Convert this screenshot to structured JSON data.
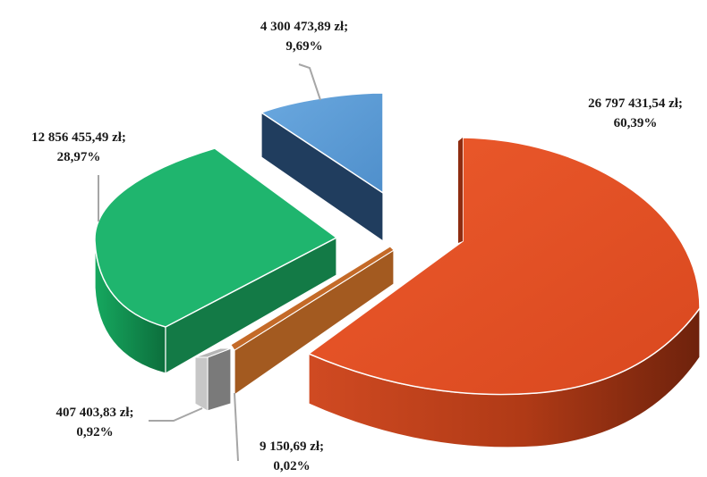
{
  "chart_data": {
    "type": "pie",
    "title": "",
    "style": "3d-exploded",
    "currency": "zł",
    "slices": [
      {
        "value_label": "26 797 431,54 zł;",
        "percent_label": "60,39%",
        "value": 26797431.54,
        "percent": 60.39,
        "color": "#e24e24"
      },
      {
        "value_label": "9 150,69 zł;",
        "percent_label": "0,02%",
        "value": 9150.69,
        "percent": 0.02,
        "color": "#a0561e"
      },
      {
        "value_label": "407 403,83 zł;",
        "percent_label": "0,92%",
        "value": 407403.83,
        "percent": 0.92,
        "color": "#9a9a9a"
      },
      {
        "value_label": "12 856 455,49 zł;",
        "percent_label": "28,97%",
        "value": 12856455.49,
        "percent": 28.97,
        "color": "#1fb56e"
      },
      {
        "value_label": "4 300 473,89 zł;",
        "percent_label": "9,69%",
        "value": 4300473.89,
        "percent": 9.69,
        "color": "#5b9bd5"
      }
    ]
  }
}
